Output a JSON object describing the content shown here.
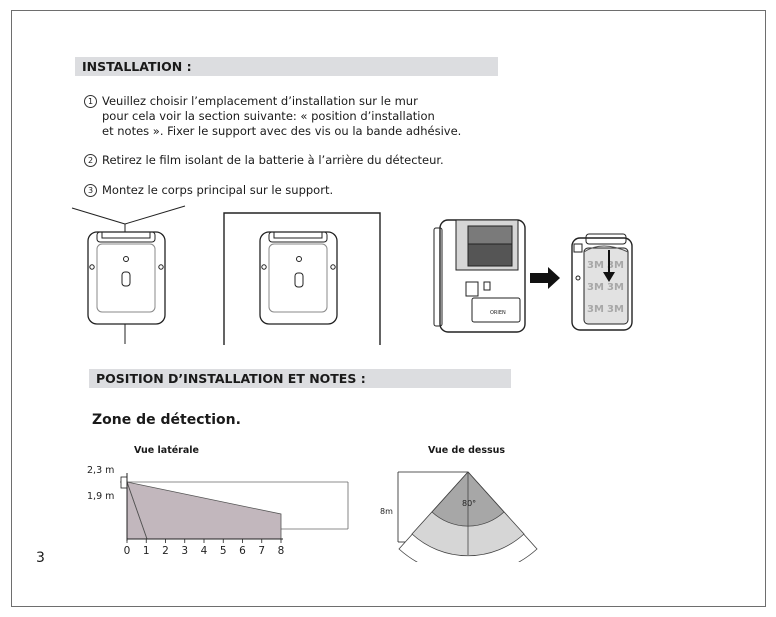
{
  "page_number": "3",
  "installation": {
    "heading": "INSTALLATION :",
    "step1_num": "1",
    "step1_line1": "Veuillez choisir l’emplacement d’installation sur le mur",
    "step1_line2": "pour cela voir la section suivante: « position d’installation",
    "step1_line3": "et notes ». Fixer le support avec des vis ou la bande adhésive.",
    "step2_num": "2",
    "step2_text": "Retirez le film isolant de la batterie à l’arrière du détecteur.",
    "step3_num": "3",
    "step3_text": "Montez le corps principal sur le support."
  },
  "illustrations": {
    "tape_text": "3M",
    "device_label": "ORIEN"
  },
  "position": {
    "heading": "POSITION D’INSTALLATION ET NOTES :",
    "zone_title": "Zone de détection."
  },
  "side_view": {
    "title": "Vue latérale",
    "height_high": "2,3 m",
    "height_low": "1,9 m",
    "distance_ticks": [
      "0",
      "1",
      "2",
      "3",
      "4",
      "5",
      "6",
      "7",
      "8"
    ]
  },
  "top_view": {
    "title": "Vue de dessus",
    "distance_label": "8m",
    "angle_label": "80°"
  }
}
